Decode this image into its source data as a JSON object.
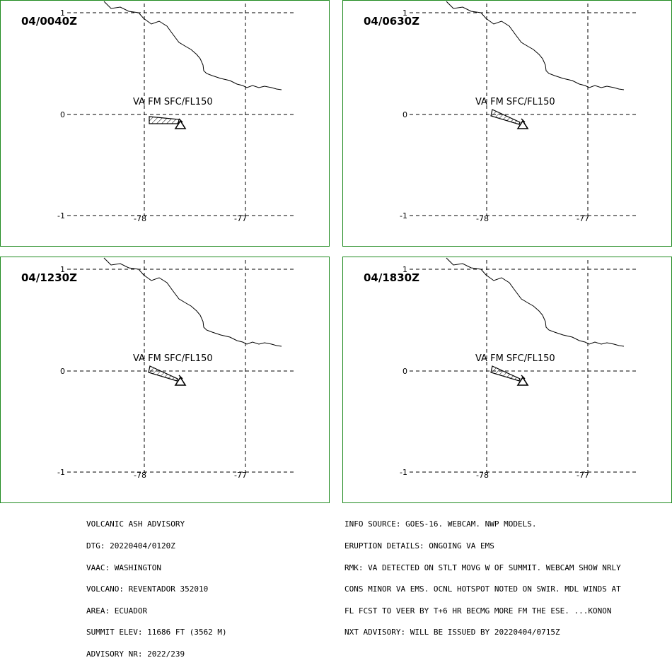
{
  "panels": [
    {
      "time": "04/0040Z",
      "ash_label": "VA FM SFC/FL150",
      "ash_shape": "pennant-east"
    },
    {
      "time": "04/0630Z",
      "ash_label": "VA FM SFC/FL150",
      "ash_shape": "wedge-wnw"
    },
    {
      "time": "04/1230Z",
      "ash_label": "VA FM SFC/FL150",
      "ash_shape": "wedge-wnw"
    },
    {
      "time": "04/1830Z",
      "ash_label": "VA FM SFC/FL150",
      "ash_shape": "wedge-wnw"
    }
  ],
  "axes": {
    "lat_labels": [
      "1",
      "0",
      "-1"
    ],
    "lon_labels": [
      "-78",
      "-77"
    ]
  },
  "colors": {
    "frame": "#1f8a1f",
    "ink": "#000000"
  },
  "icons": {
    "volcano": "volcano-triangle-icon"
  },
  "advisory_left": [
    "VOLCANIC ASH ADVISORY",
    "DTG: 20220404/0120Z",
    "VAAC: WASHINGTON",
    "VOLCANO: REVENTADOR 352010",
    "AREA: ECUADOR",
    "SUMMIT ELEV: 11686 FT (3562 M)",
    "ADVISORY NR: 2022/239"
  ],
  "advisory_right": [
    "INFO SOURCE: GOES-16. WEBCAM. NWP MODELS.",
    "ERUPTION DETAILS: ONGOING VA EMS",
    "RMK: VA DETECTED ON STLT MOVG W OF SUMMIT. WEBCAM SHOW NRLY",
    "CONS MINOR VA EMS. OCNL HOTSPOT NOTED ON SWIR. MDL WINDS AT",
    "FL FCST TO VEER BY T+6 HR BECMG MORE FM THE ESE. ...KONON",
    "NXT ADVISORY: WILL BE ISSUED BY 20220404/0715Z"
  ]
}
